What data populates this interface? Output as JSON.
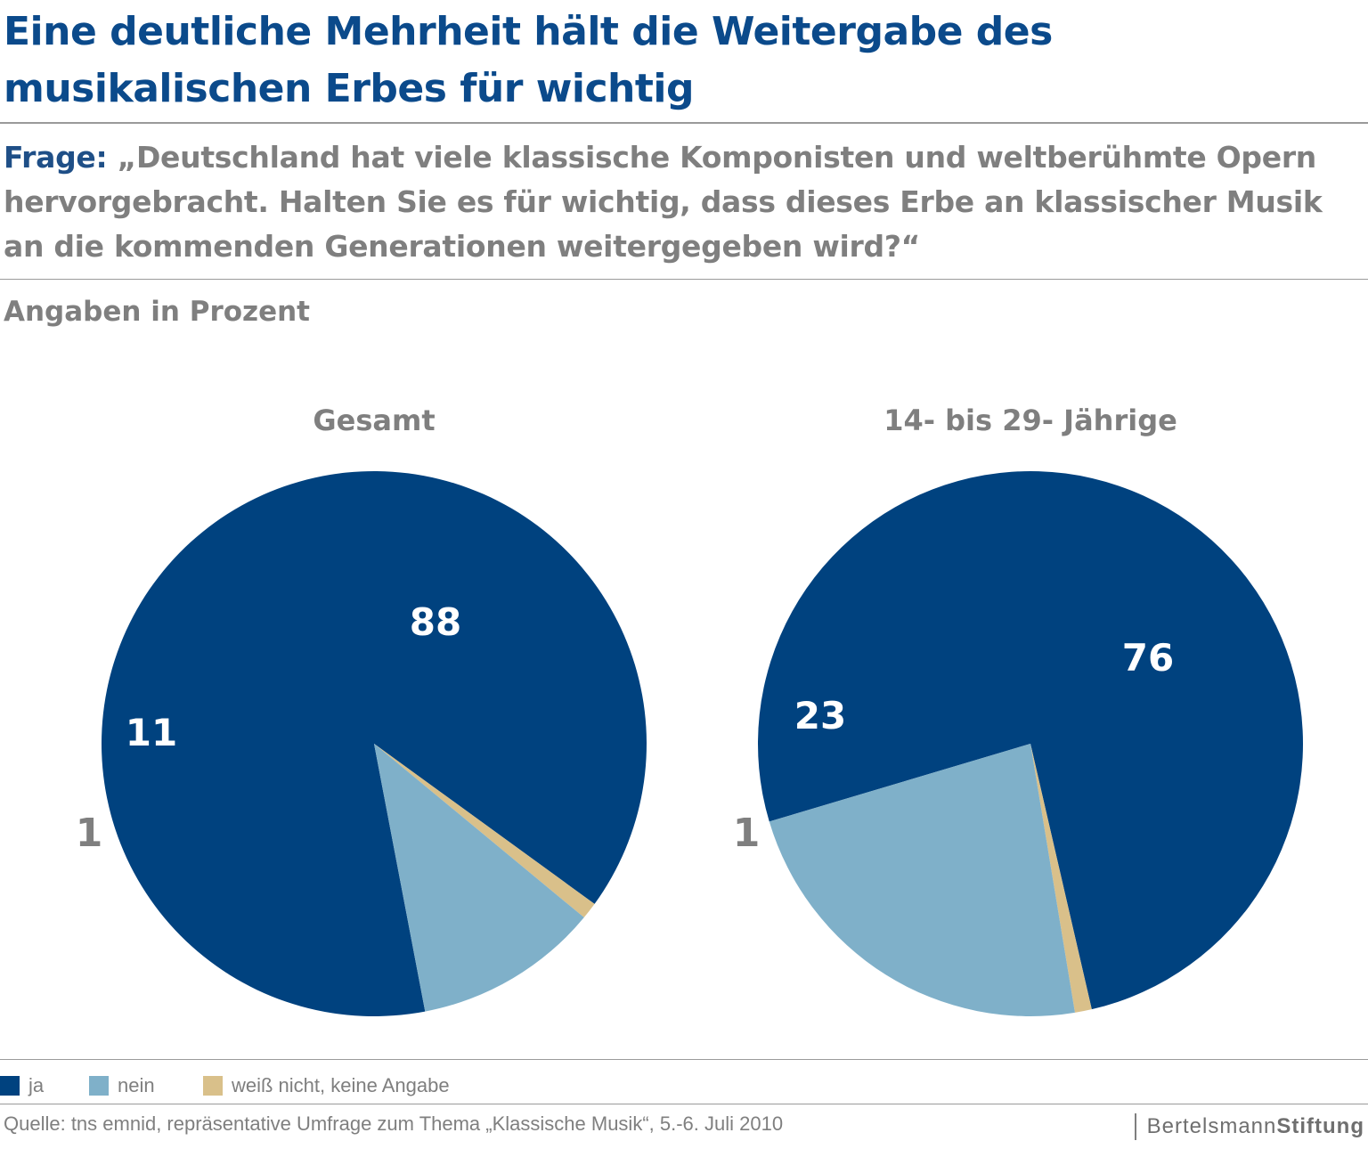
{
  "header": {
    "title": "Eine deutliche Mehrheit hält die Weitergabe des musikalischen Erbes für wichtig",
    "question_label": "Frage:",
    "question_text": "„Deutschland hat viele klassische Komponisten und weltberühmte Opern hervorgebracht. Halten Sie es für wichtig, dass dieses Erbe an klassischer Musik an die kommenden Generationen weitergegeben wird?“",
    "units": "Angaben in Prozent"
  },
  "chart_data": [
    {
      "type": "pie",
      "title": "Gesamt",
      "categories": [
        "ja",
        "nein",
        "weiß nicht, keine Angabe"
      ],
      "values": [
        88,
        11,
        1
      ],
      "labels": [
        "88",
        "11",
        "1"
      ],
      "colors": [
        "#00427f",
        "#7fb0c9",
        "#d9c08a"
      ]
    },
    {
      "type": "pie",
      "title": "14- bis 29- Jährige",
      "categories": [
        "ja",
        "nein",
        "weiß nicht, keine Angabe"
      ],
      "values": [
        76,
        23,
        1
      ],
      "labels": [
        "76",
        "23",
        "1"
      ],
      "colors": [
        "#00427f",
        "#7fb0c9",
        "#d9c08a"
      ]
    }
  ],
  "legend": [
    {
      "label": "ja",
      "color": "#00427f"
    },
    {
      "label": "nein",
      "color": "#7fb0c9"
    },
    {
      "label": "weiß nicht, keine Angabe",
      "color": "#d9c08a"
    }
  ],
  "footer": {
    "source": "Quelle: tns emnid, repräsentative Umfrage zum Thema „Klassische Musik“, 5.-6. Juli 2010",
    "logo_part1": "Bertelsmann",
    "logo_part2": "Stiftung"
  },
  "colors": {
    "title": "#0b4a8b",
    "question_label": "#1f4f87",
    "text_gray": "#7f7f7f",
    "rule": "#9a9a9a"
  }
}
